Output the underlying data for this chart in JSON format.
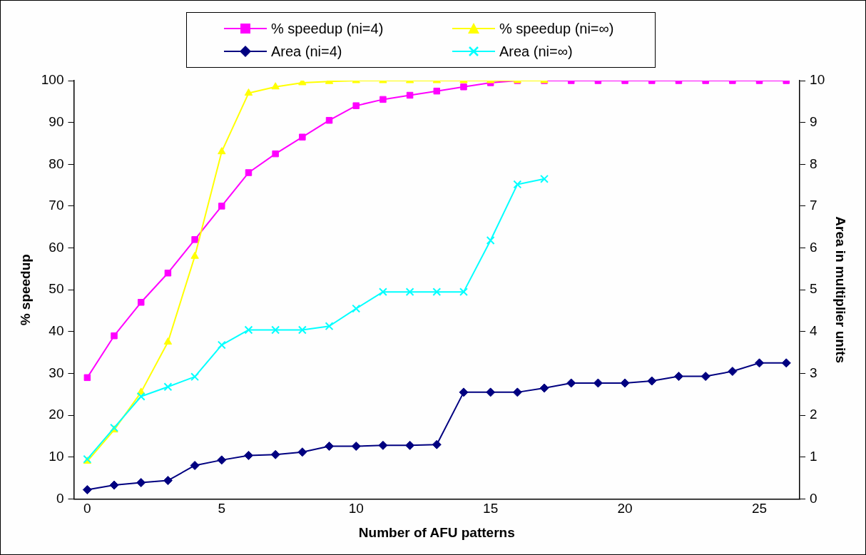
{
  "chart_data": {
    "type": "line",
    "xlabel": "Number of AFU patterns",
    "ylabel": "% speedup",
    "y2label": "Area in multiplier units",
    "categories": [
      "0",
      null,
      null,
      null,
      null,
      "5",
      null,
      null,
      null,
      null,
      "10",
      null,
      null,
      null,
      null,
      "15",
      null,
      null,
      null,
      null,
      "20",
      null,
      null,
      null,
      null,
      "25",
      null
    ],
    "ylim": [
      0,
      100
    ],
    "yticks": [
      0,
      10,
      20,
      30,
      40,
      50,
      60,
      70,
      80,
      90,
      100
    ],
    "y2lim": [
      0,
      10
    ],
    "y2ticks": [
      0,
      1,
      2,
      3,
      4,
      5,
      6,
      7,
      8,
      9,
      10
    ],
    "grid": false,
    "legend": "top",
    "line_style": "solid",
    "series": [
      {
        "name": "% speedup (ni=4)",
        "color": "#ff00ff",
        "marker": "square",
        "values": [
          29,
          39,
          47,
          54,
          62,
          70,
          78,
          82.5,
          86.5,
          90.5,
          94,
          95.5,
          96.5,
          97.5,
          98.5,
          99.5,
          100,
          100,
          100,
          100,
          100,
          100,
          100,
          100,
          100,
          100,
          100
        ]
      },
      {
        "name": "% speedup (ni=∞)",
        "color": "#ffff00",
        "marker": "triangle",
        "values": [
          9,
          16.5,
          25.5,
          37.5,
          58,
          83,
          97,
          98.5,
          99.5,
          99.8,
          100,
          100,
          100,
          100,
          100,
          100,
          100,
          100,
          null,
          null,
          null,
          null,
          null,
          null,
          null,
          null,
          null
        ]
      },
      {
        "name": "Area (ni=4)",
        "color": "#000080",
        "marker": "diamond",
        "axis": "y2",
        "values": [
          0.22,
          0.33,
          0.39,
          0.44,
          0.8,
          0.93,
          1.04,
          1.06,
          1.12,
          1.26,
          1.26,
          1.28,
          1.28,
          1.3,
          2.55,
          2.55,
          2.55,
          2.65,
          2.77,
          2.77,
          2.77,
          2.82,
          2.93,
          2.93,
          3.05,
          3.25,
          3.25
        ]
      },
      {
        "name": "Area (ni=∞)",
        "color": "#00ffff",
        "marker": "cross",
        "axis": "y2",
        "values": [
          0.95,
          1.7,
          2.45,
          2.68,
          2.92,
          3.68,
          4.04,
          4.04,
          4.04,
          4.13,
          4.55,
          4.95,
          4.95,
          4.95,
          4.95,
          6.18,
          7.52,
          7.65,
          null,
          null,
          null,
          null,
          null,
          null,
          null,
          null,
          null
        ]
      }
    ]
  }
}
